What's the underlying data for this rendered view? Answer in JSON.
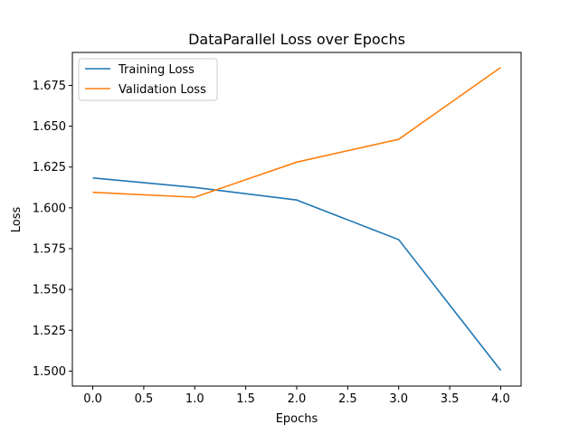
{
  "chart_data": {
    "type": "line",
    "title": "DataParallel Loss over Epochs",
    "xlabel": "Epochs",
    "ylabel": "Loss",
    "xlim": [
      -0.2,
      4.2
    ],
    "ylim": [
      1.4908,
      1.6952
    ],
    "xticks": [
      0.0,
      0.5,
      1.0,
      1.5,
      2.0,
      2.5,
      3.0,
      3.5,
      4.0
    ],
    "xtick_labels": [
      "0.0",
      "0.5",
      "1.0",
      "1.5",
      "2.0",
      "2.5",
      "3.0",
      "3.5",
      "4.0"
    ],
    "yticks": [
      1.5,
      1.525,
      1.55,
      1.575,
      1.6,
      1.625,
      1.65,
      1.675
    ],
    "ytick_labels": [
      "1.500",
      "1.525",
      "1.550",
      "1.575",
      "1.600",
      "1.625",
      "1.650",
      "1.675"
    ],
    "grid": false,
    "legend": "upper left",
    "x": [
      0,
      1,
      2,
      3,
      4
    ],
    "series": [
      {
        "name": "Training Loss",
        "color": "#1f77b4",
        "values": [
          1.6183,
          1.6125,
          1.6048,
          1.5805,
          1.5004
        ]
      },
      {
        "name": "Validation Loss",
        "color": "#ff7f0e",
        "values": [
          1.6095,
          1.6065,
          1.628,
          1.642,
          1.686
        ]
      }
    ]
  }
}
